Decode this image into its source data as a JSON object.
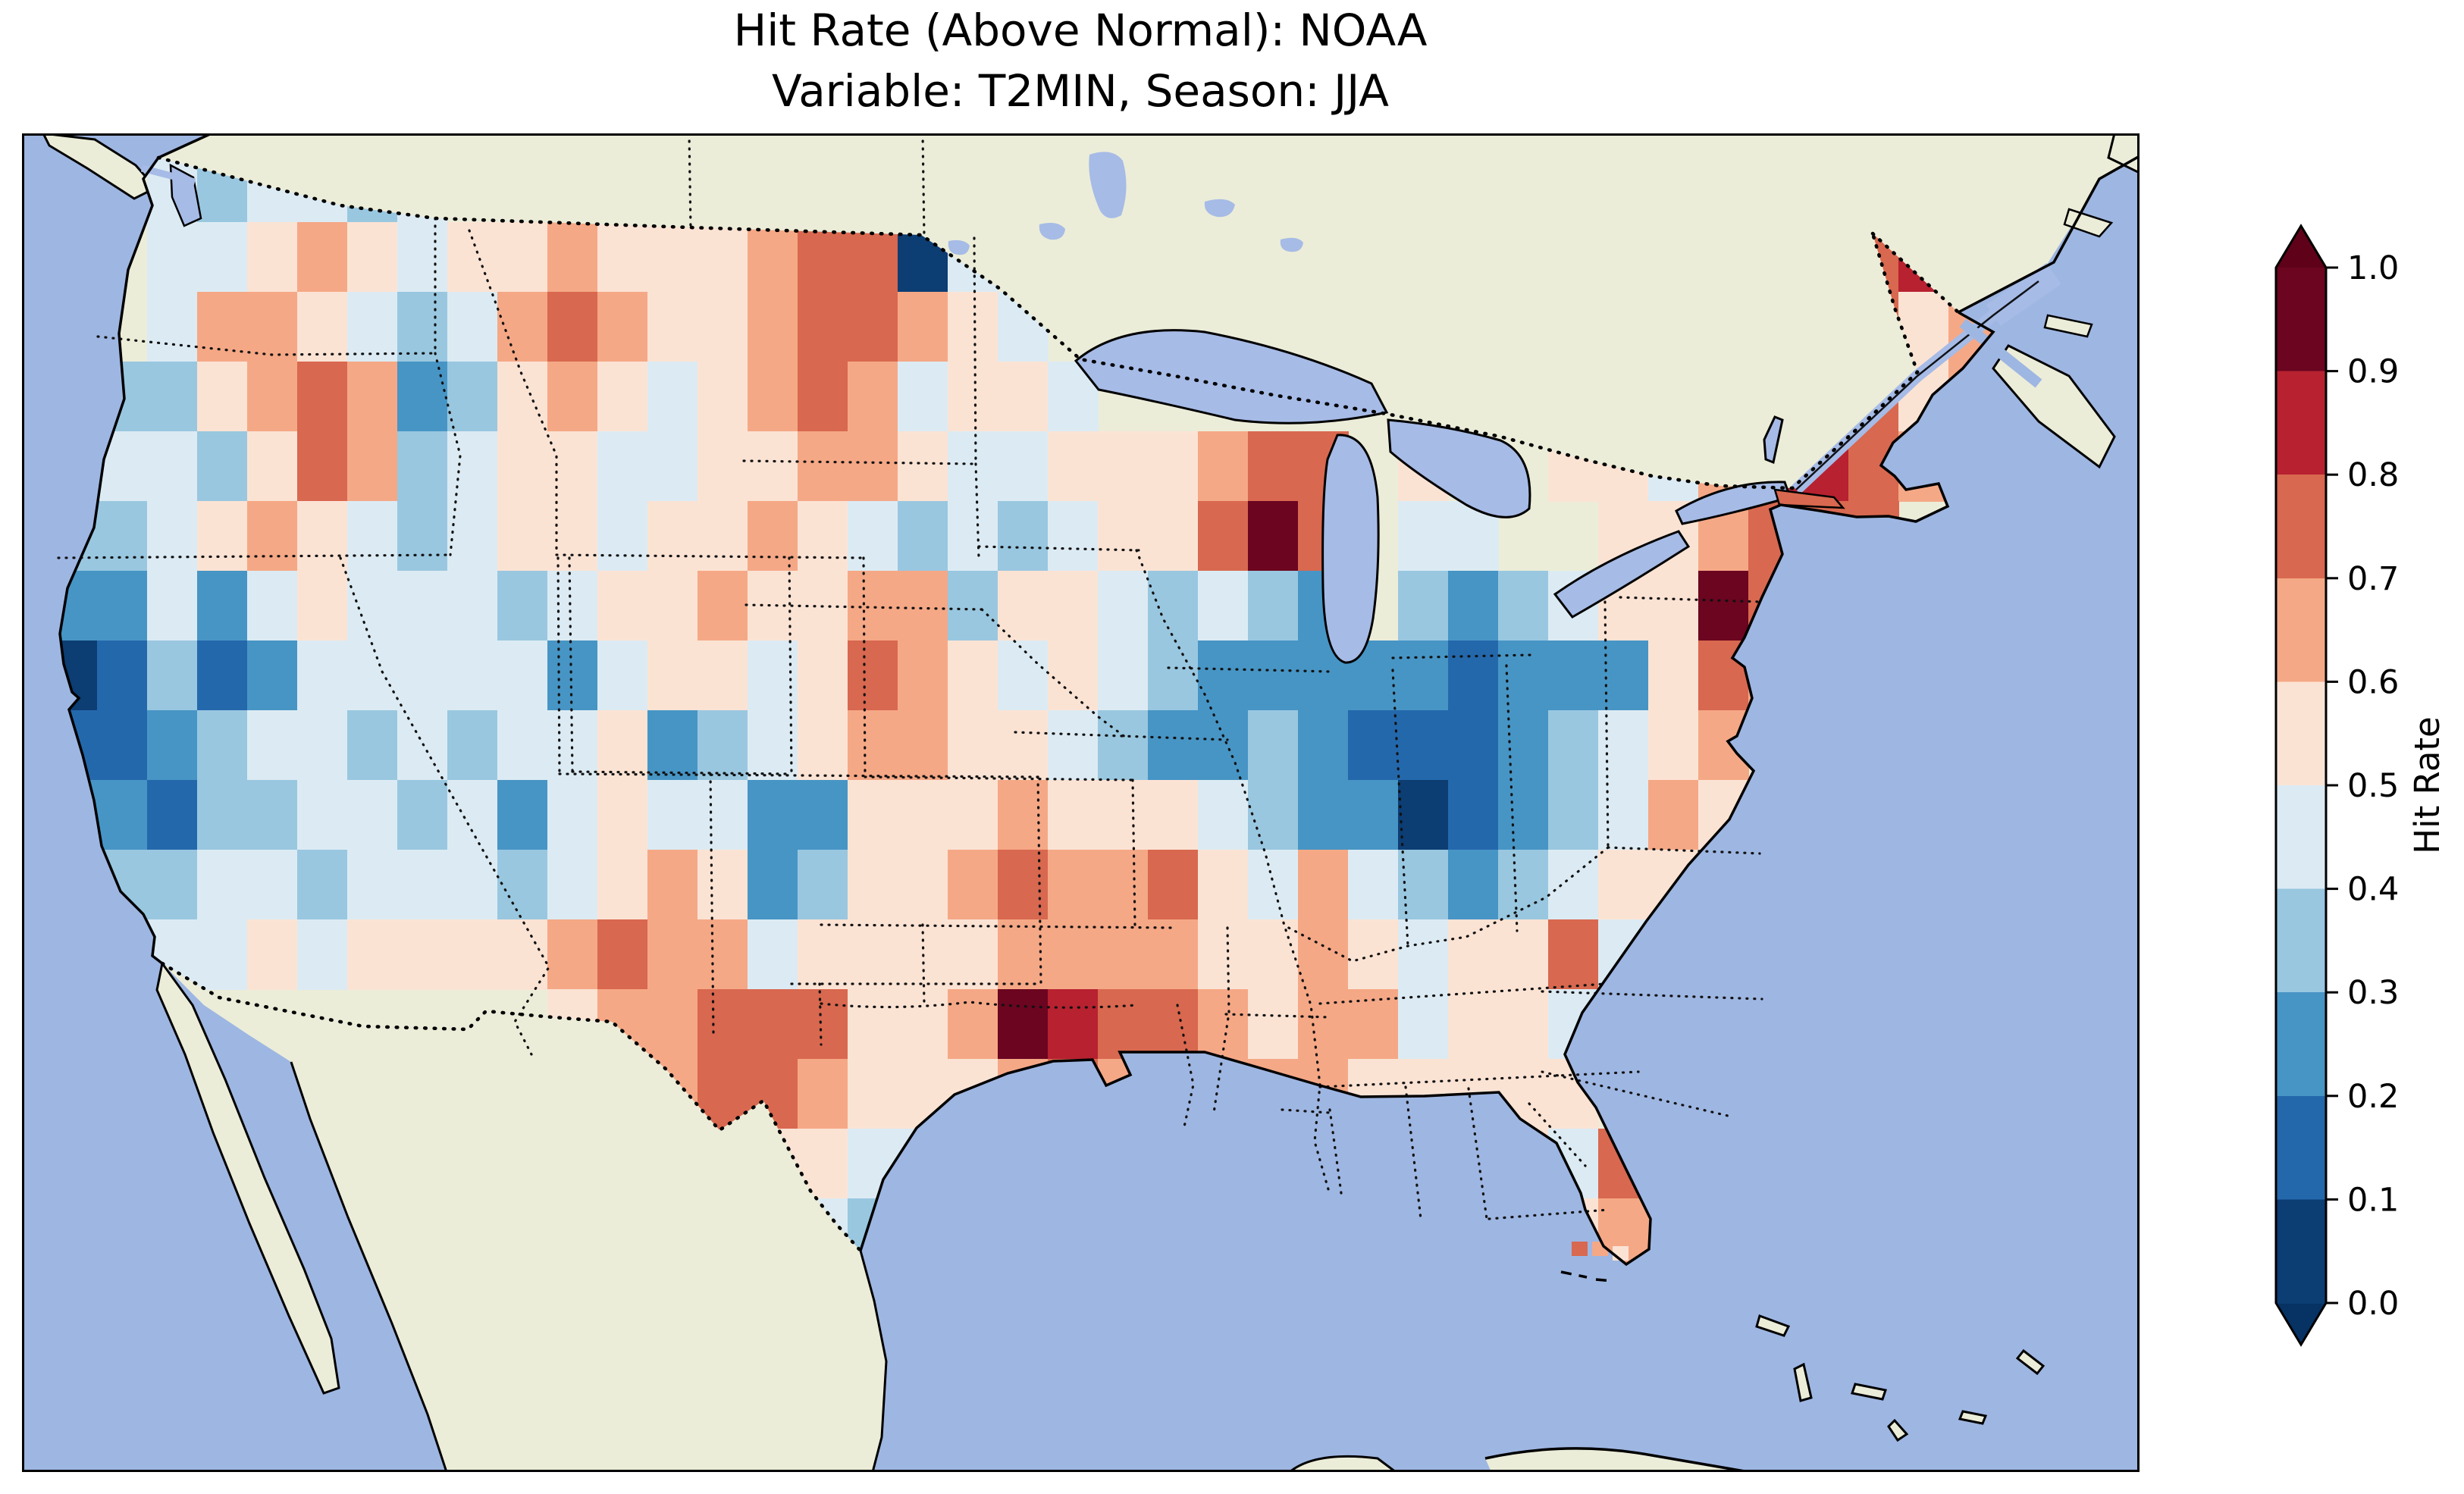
{
  "title": {
    "line1": "Hit Rate (Above Normal): NOAA",
    "line2": "Variable: T2MIN, Season: JJA"
  },
  "colorbar": {
    "label": "Hit Rate",
    "tick_labels": [
      "1.0",
      "0.9",
      "0.8",
      "0.7",
      "0.6",
      "0.5",
      "0.4",
      "0.3",
      "0.2",
      "0.1",
      "0.0"
    ],
    "bin_edges": [
      0.0,
      0.1,
      0.2,
      0.3,
      0.4,
      0.5,
      0.6,
      0.7,
      0.8,
      0.9,
      1.0
    ],
    "bin_colors_low_to_high": [
      "#0c3d73",
      "#2468ac",
      "#4795c5",
      "#99c7e0",
      "#dcebf3",
      "#fbe3d4",
      "#f5a886",
      "#d8684f",
      "#b72130",
      "#6b0520"
    ],
    "under_arrow_color": "#063264",
    "over_arrow_color": "#5f0119",
    "extend": "both",
    "outline_color": "#000000"
  },
  "map": {
    "ocean_color": "#9eb6e2",
    "land_color": "#ecedd8",
    "lake_color": "#a6bbe6",
    "coastline_color": "#000000",
    "border_style": "dotted",
    "frame_color": "#000000"
  },
  "chart_data": {
    "type": "heatmap",
    "title": "Hit Rate (Above Normal): NOAA",
    "subtitle": "Variable: T2MIN, Season: JJA",
    "dataset": "NOAA",
    "variable": "T2MIN",
    "season": "JJA",
    "region": "Contiguous United States",
    "colormap": "RdBu reversed, 10 discrete bins, extended both ends",
    "value_range": [
      0.0,
      1.0
    ],
    "legend_label": "Hit Rate",
    "grid_note": "Approximate hit-rate values on a coarse lon/lat raster read from the map; rows run north to south (lat ~50.3 to ~23.8), columns west to east (lon ~-125.4 to ~-65.8). null = outside CONUS data mask. Values are bin midpoints.",
    "grid_rows": 16,
    "grid_cols": 42,
    "cell_values": [
      [
        null,
        null,
        0.45,
        0.35,
        0.45,
        0.45,
        0.35,
        0.45,
        null,
        null,
        null,
        null,
        null,
        null,
        null,
        null,
        null,
        null,
        null,
        null,
        null,
        null,
        null,
        null,
        null,
        null,
        null,
        null,
        null,
        null,
        null,
        null,
        null,
        null,
        null,
        null,
        null,
        null,
        null,
        null,
        null,
        null
      ],
      [
        null,
        null,
        0.45,
        0.45,
        0.55,
        0.65,
        0.55,
        0.45,
        0.55,
        0.55,
        0.65,
        0.55,
        0.55,
        0.55,
        0.65,
        0.75,
        0.75,
        0.05,
        0.45,
        null,
        null,
        null,
        null,
        null,
        null,
        null,
        null,
        null,
        null,
        null,
        null,
        null,
        null,
        null,
        null,
        null,
        0.75,
        0.85,
        null,
        null,
        null,
        null
      ],
      [
        null,
        null,
        0.45,
        0.65,
        0.65,
        0.55,
        0.45,
        0.35,
        0.45,
        0.65,
        0.75,
        0.65,
        0.55,
        0.55,
        0.65,
        0.75,
        0.75,
        0.65,
        0.55,
        0.45,
        null,
        null,
        null,
        null,
        null,
        null,
        null,
        null,
        null,
        null,
        null,
        null,
        null,
        null,
        null,
        0.85,
        0.75,
        0.55,
        0.65,
        null,
        null,
        null
      ],
      [
        0.35,
        0.35,
        0.35,
        0.55,
        0.65,
        0.75,
        0.65,
        0.25,
        0.35,
        0.55,
        0.65,
        0.55,
        0.45,
        0.55,
        0.65,
        0.75,
        0.65,
        0.45,
        0.55,
        0.55,
        0.45,
        null,
        null,
        null,
        null,
        null,
        null,
        null,
        null,
        null,
        null,
        0.45,
        0.55,
        0.75,
        0.95,
        0.85,
        0.75,
        0.55,
        0.65,
        null,
        null,
        null
      ],
      [
        0.45,
        0.45,
        0.45,
        0.35,
        0.55,
        0.75,
        0.65,
        0.35,
        0.45,
        0.55,
        0.55,
        0.45,
        0.45,
        0.55,
        0.55,
        0.65,
        0.65,
        0.55,
        0.45,
        0.45,
        0.55,
        0.55,
        0.55,
        0.65,
        0.75,
        0.75,
        null,
        0.55,
        null,
        null,
        0.55,
        0.55,
        0.45,
        0.65,
        0.85,
        0.85,
        0.75,
        0.65,
        null,
        null,
        null,
        null
      ],
      [
        0.35,
        0.35,
        0.45,
        0.55,
        0.65,
        0.55,
        0.45,
        0.35,
        0.45,
        0.55,
        0.55,
        0.45,
        0.55,
        0.55,
        0.65,
        0.55,
        0.45,
        0.35,
        0.45,
        0.35,
        0.45,
        0.55,
        0.55,
        0.75,
        0.95,
        0.75,
        null,
        0.45,
        0.45,
        null,
        null,
        0.55,
        0.55,
        0.65,
        0.75,
        0.75,
        0.75,
        null,
        null,
        null,
        null,
        null
      ],
      [
        0.25,
        0.25,
        0.45,
        0.25,
        0.45,
        0.55,
        0.45,
        0.45,
        0.45,
        0.35,
        0.45,
        0.55,
        0.55,
        0.65,
        0.55,
        0.55,
        0.65,
        0.65,
        0.35,
        0.55,
        0.55,
        0.45,
        0.35,
        0.45,
        0.35,
        0.25,
        null,
        0.35,
        0.25,
        0.35,
        0.45,
        0.55,
        0.55,
        0.95,
        0.75,
        null,
        null,
        null,
        null,
        null,
        null,
        null
      ],
      [
        0.05,
        0.15,
        0.35,
        0.15,
        0.25,
        0.45,
        0.45,
        0.45,
        0.45,
        0.45,
        0.25,
        0.45,
        0.55,
        0.55,
        0.45,
        0.55,
        0.75,
        0.65,
        0.55,
        0.45,
        0.55,
        0.45,
        0.35,
        0.25,
        0.25,
        0.25,
        0.25,
        0.25,
        0.15,
        0.25,
        0.25,
        0.25,
        0.55,
        0.75,
        0.65,
        null,
        null,
        null,
        null,
        null,
        null,
        null
      ],
      [
        0.15,
        0.15,
        0.25,
        0.35,
        0.45,
        0.45,
        0.35,
        0.45,
        0.35,
        0.45,
        0.45,
        0.55,
        0.25,
        0.35,
        0.45,
        0.55,
        0.65,
        0.65,
        0.55,
        0.55,
        0.45,
        0.35,
        0.25,
        0.25,
        0.35,
        0.25,
        0.15,
        0.15,
        0.15,
        0.25,
        0.35,
        0.45,
        0.55,
        0.65,
        null,
        null,
        null,
        null,
        null,
        null,
        null,
        null
      ],
      [
        0.25,
        0.25,
        0.15,
        0.35,
        0.35,
        0.45,
        0.45,
        0.35,
        0.45,
        0.25,
        0.45,
        0.55,
        0.45,
        0.45,
        0.25,
        0.25,
        0.55,
        0.55,
        0.55,
        0.65,
        0.55,
        0.55,
        0.55,
        0.45,
        0.35,
        0.25,
        0.25,
        0.05,
        0.15,
        0.25,
        0.35,
        0.45,
        0.65,
        0.55,
        null,
        null,
        null,
        null,
        null,
        null,
        null,
        null
      ],
      [
        null,
        0.35,
        0.35,
        0.45,
        0.45,
        0.35,
        0.45,
        0.45,
        0.45,
        0.35,
        0.45,
        0.55,
        0.65,
        0.55,
        0.25,
        0.35,
        0.55,
        0.55,
        0.65,
        0.75,
        0.65,
        0.65,
        0.75,
        0.55,
        0.45,
        0.65,
        0.45,
        0.35,
        0.25,
        0.35,
        0.45,
        0.55,
        0.55,
        0.55,
        null,
        null,
        null,
        null,
        null,
        null,
        null,
        null
      ],
      [
        null,
        null,
        0.45,
        0.45,
        0.55,
        0.45,
        0.55,
        0.55,
        0.55,
        0.55,
        0.65,
        0.75,
        0.65,
        0.65,
        0.45,
        0.55,
        0.55,
        0.55,
        0.55,
        0.65,
        0.65,
        0.65,
        0.65,
        0.55,
        0.55,
        0.65,
        0.55,
        0.45,
        0.55,
        0.55,
        0.75,
        0.45,
        0.45,
        null,
        null,
        null,
        null,
        null,
        null,
        null,
        null,
        null
      ],
      [
        null,
        null,
        null,
        null,
        null,
        null,
        null,
        null,
        null,
        null,
        0.55,
        0.65,
        0.65,
        0.75,
        0.75,
        0.75,
        0.55,
        0.55,
        0.65,
        0.95,
        0.85,
        0.75,
        0.75,
        0.65,
        0.55,
        0.65,
        0.65,
        0.45,
        0.55,
        0.55,
        0.45,
        0.45,
        null,
        null,
        null,
        null,
        null,
        null,
        null,
        null,
        null,
        null
      ],
      [
        null,
        null,
        null,
        null,
        null,
        null,
        null,
        null,
        null,
        null,
        null,
        null,
        0.65,
        0.75,
        0.75,
        0.65,
        0.55,
        0.55,
        0.55,
        0.65,
        0.75,
        0.65,
        0.55,
        0.65,
        0.65,
        0.65,
        0.55,
        0.55,
        0.55,
        0.55,
        0.55,
        null,
        null,
        null,
        null,
        null,
        null,
        null,
        null,
        null,
        null,
        null
      ],
      [
        null,
        null,
        null,
        null,
        null,
        null,
        null,
        null,
        null,
        null,
        null,
        null,
        null,
        null,
        0.55,
        0.55,
        0.45,
        0.45,
        null,
        null,
        null,
        null,
        null,
        null,
        null,
        null,
        null,
        null,
        null,
        0.55,
        0.45,
        0.75,
        null,
        null,
        null,
        null,
        null,
        null,
        null,
        null,
        null,
        null
      ],
      [
        null,
        null,
        null,
        null,
        null,
        null,
        null,
        null,
        null,
        null,
        null,
        null,
        null,
        null,
        null,
        0.45,
        0.35,
        0.35,
        null,
        null,
        null,
        null,
        null,
        null,
        null,
        null,
        null,
        null,
        null,
        null,
        0.55,
        0.65,
        null,
        null,
        null,
        null,
        null,
        null,
        null,
        null,
        null,
        null
      ]
    ],
    "florida_keys_detached_cells": [
      0.75,
      0.65,
      0.55
    ],
    "regions_summary": [
      {
        "region": "New England (VT/NH/interior ME)",
        "hit_rate": "0.75-0.95"
      },
      {
        "region": "New Jersey / mid-Atlantic coast",
        "hit_rate": "0.85-0.95"
      },
      {
        "region": "Ohio Valley & southern Great Lakes (IL-IN-OH)",
        "hit_rate": "0.05-0.30"
      },
      {
        "region": "Northern Minnesota border cell",
        "hit_rate": "0.00-0.10"
      },
      {
        "region": "North Dakota",
        "hit_rate": "0.65-0.80"
      },
      {
        "region": "Northern Wisconsin / Upper Michigan",
        "hit_rate": "0.70-0.95"
      },
      {
        "region": "West Texas",
        "hit_rate": "0.70-0.80"
      },
      {
        "region": "Louisiana / S. Arkansas / Mississippi",
        "hit_rate": "0.75-0.95"
      },
      {
        "region": "Central-east Florida",
        "hit_rate": "0.70-0.80"
      },
      {
        "region": "California central coast (SF Bay)",
        "hit_rate": "0.05-0.20"
      },
      {
        "region": "Pacific Northwest coast",
        "hit_rate": "0.30-0.50"
      },
      {
        "region": "SE Washington / NE Oregon / C. Montana",
        "hit_rate": "0.65-0.80"
      },
      {
        "region": "Colorado Rockies",
        "hit_rate": "0.25-0.40"
      },
      {
        "region": "Central New Mexico",
        "hit_rate": "0.65-0.80"
      },
      {
        "region": "Central Kansas",
        "hit_rate": "0.65-0.80"
      },
      {
        "region": "Great Basin / interior West",
        "hit_rate": "0.35-0.55"
      },
      {
        "region": "Southeast (GA / Carolinas)",
        "hit_rate": "0.45-0.65"
      }
    ]
  }
}
